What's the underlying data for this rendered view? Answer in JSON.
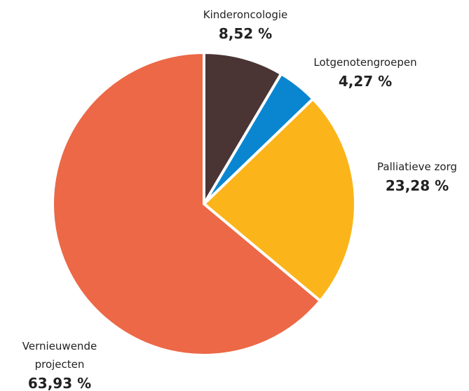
{
  "chart_data": {
    "type": "pie",
    "categories": [
      "Kinderoncologie",
      "Lotgenotengroepen",
      "Palliatieve zorg",
      "Vernieuwende projecten"
    ],
    "values": [
      8.52,
      4.27,
      23.28,
      63.93
    ],
    "value_labels": [
      "8,52 %",
      "4,27 %",
      "23,28 %",
      "63,93 %"
    ],
    "colors": [
      "#4a3434",
      "#0a86d0",
      "#fbb51a",
      "#ec6846"
    ]
  }
}
